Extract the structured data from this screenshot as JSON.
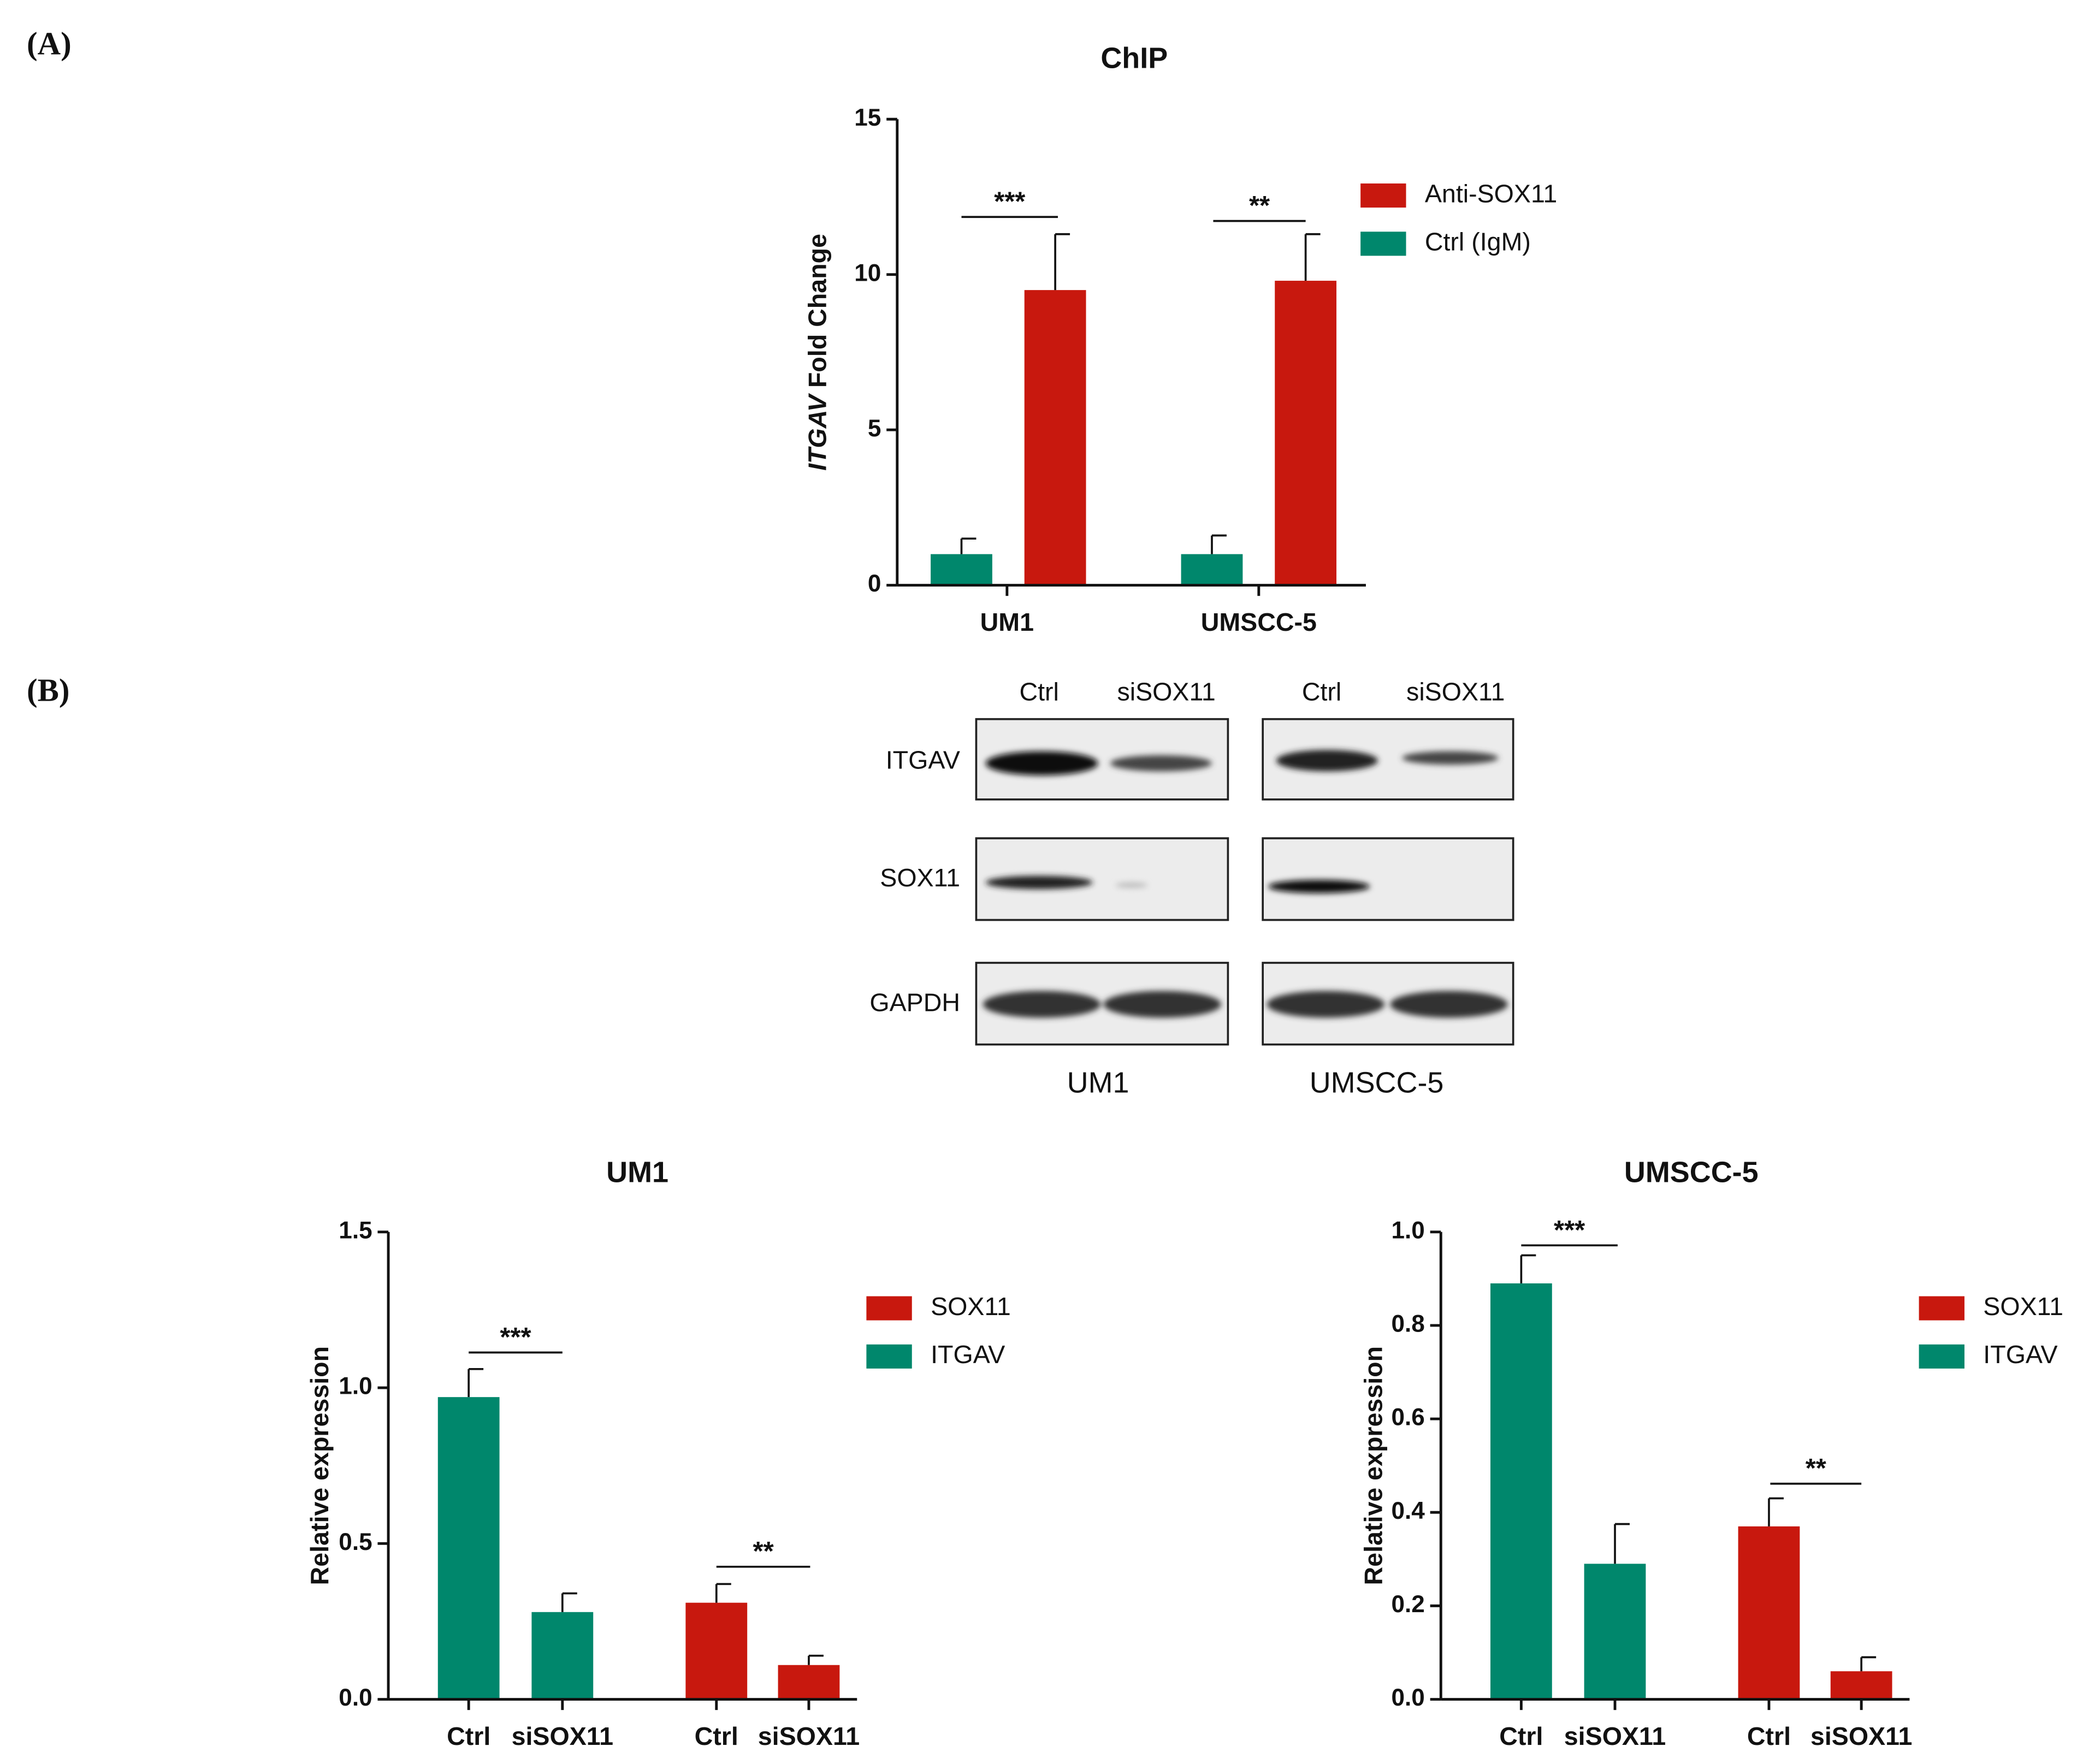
{
  "panel_labels": [
    "(A)",
    "(B)"
  ],
  "blot": {
    "lanes": [
      "Ctrl",
      "siSOX11",
      "Ctrl",
      "siSOX11"
    ],
    "proteins": [
      "ITGAV",
      "SOX11",
      "GAPDH"
    ],
    "cell_lines": [
      "UM1",
      "UMSCC-5"
    ]
  },
  "chart_data": [
    {
      "type": "bar",
      "title": "ChIP",
      "y_label": {
        "italic": "ITGAV",
        "text": "Fold Change"
      },
      "categories": [
        "UM1",
        "UMSCC-5"
      ],
      "series": [
        {
          "name": "Ctrl (IgM)",
          "color": "#00876c",
          "values": [
            1.0,
            1.0
          ],
          "errors": [
            0.5,
            0.6
          ]
        },
        {
          "name": "Anti-SOX11",
          "color": "#c8180e",
          "values": [
            9.5,
            9.8
          ],
          "errors": [
            1.8,
            1.5
          ]
        }
      ],
      "ylim": [
        0,
        15
      ],
      "yticks": [
        0,
        5,
        10,
        15
      ],
      "annotations": [
        "***",
        "**"
      ]
    },
    {
      "type": "bar",
      "title": "UM1",
      "y_label": "Relative expression",
      "categories": [
        "Ctrl",
        "siSOX11",
        "Ctrl",
        "siSOX11"
      ],
      "series": [
        {
          "name": "ITGAV",
          "color": "#00876c",
          "values": [
            0.97,
            0.28,
            null,
            null
          ],
          "errors": [
            0.09,
            0.06,
            null,
            null
          ]
        },
        {
          "name": "SOX11",
          "color": "#c8180e",
          "values": [
            null,
            null,
            0.31,
            0.11
          ],
          "errors": [
            null,
            null,
            0.06,
            0.03
          ]
        }
      ],
      "ylim": [
        0,
        1.5
      ],
      "yticks": [
        {
          "value": 0,
          "label": "0.0"
        },
        {
          "value": 0.5,
          "label": "0.5"
        },
        {
          "value": 1,
          "label": "1.0"
        },
        {
          "value": 1.5,
          "label": "1.5"
        }
      ],
      "annotations": [
        "***",
        "**"
      ]
    },
    {
      "type": "bar",
      "title": "UMSCC-5",
      "y_label": "Relative expression",
      "categories": [
        "Ctrl",
        "siSOX11",
        "Ctrl",
        "siSOX11"
      ],
      "series": [
        {
          "name": "ITGAV",
          "color": "#00876c",
          "values": [
            0.89,
            0.29,
            null,
            null
          ],
          "errors": [
            0.06,
            0.085,
            null,
            null
          ]
        },
        {
          "name": "SOX11",
          "color": "#c8180e",
          "values": [
            null,
            null,
            0.37,
            0.06
          ],
          "errors": [
            null,
            null,
            0.06,
            0.03
          ]
        }
      ],
      "ylim": [
        0,
        1
      ],
      "yticks": [
        {
          "value": 0,
          "label": "0.0"
        },
        {
          "value": 0.2,
          "label": "0.2"
        },
        {
          "value": 0.4,
          "label": "0.4"
        },
        {
          "value": 0.6,
          "label": "0.6"
        },
        {
          "value": 0.8,
          "label": "0.8"
        },
        {
          "value": 1,
          "label": "1.0"
        }
      ],
      "annotations": [
        "***",
        "**"
      ]
    }
  ]
}
